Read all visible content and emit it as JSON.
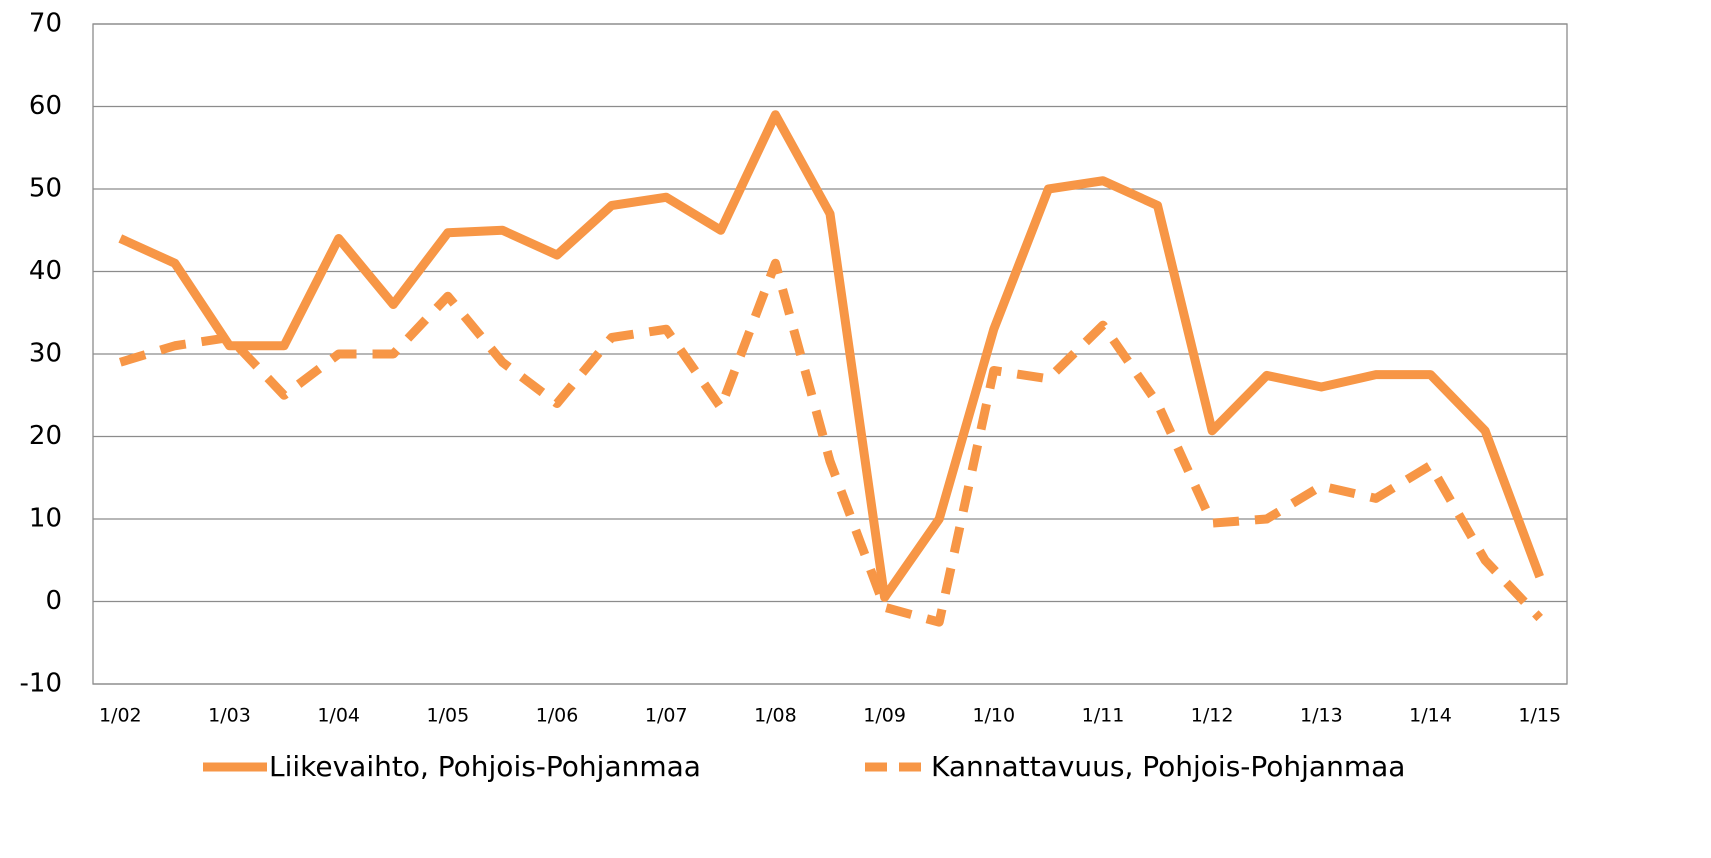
{
  "chart_data": {
    "type": "line",
    "categories": [
      "1/02",
      null,
      "1/03",
      null,
      "1/04",
      null,
      "1/05",
      null,
      "1/06",
      null,
      "1/07",
      null,
      "1/08",
      null,
      "1/09",
      null,
      "1/10",
      null,
      "1/11",
      null,
      "1/12",
      null,
      "1/13",
      null,
      "1/14",
      null,
      "1/15"
    ],
    "series": [
      {
        "name": "Liikevaihto, Pohjois-Pohjanmaa",
        "color": "#f79646",
        "dash": "solid",
        "values": [
          44,
          41,
          31,
          31,
          44,
          36,
          44.7,
          45,
          42,
          48,
          49,
          45,
          59,
          47,
          0.5,
          10,
          33,
          50,
          51,
          48,
          20.7,
          27.4,
          26,
          27.5,
          27.5,
          20.7,
          3
        ]
      },
      {
        "name": "Kannattavuus, Pohjois-Pohjanmaa",
        "color": "#f79646",
        "dash": "dashed",
        "values": [
          29,
          31,
          32,
          25,
          30,
          30,
          37,
          29,
          24,
          32,
          33,
          23.5,
          41,
          17,
          -0.7,
          -2.5,
          28,
          27,
          33.5,
          24,
          9.5,
          10,
          14,
          12.5,
          16.5,
          5,
          -2
        ]
      }
    ],
    "ylim": [
      -10,
      70
    ],
    "yticks": [
      -10,
      0,
      10,
      20,
      30,
      40,
      50,
      60,
      70
    ],
    "grid": true,
    "legend": "bottom"
  }
}
